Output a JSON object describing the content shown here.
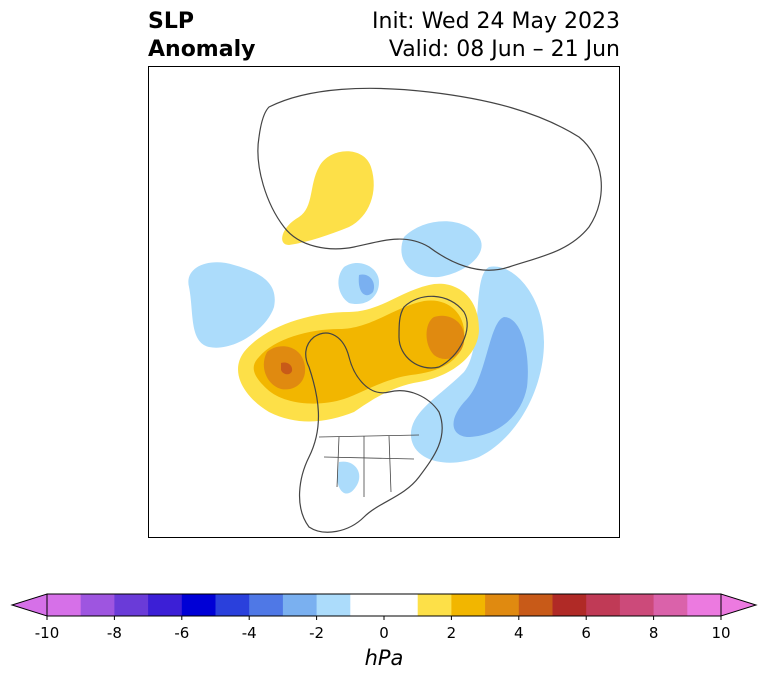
{
  "title": {
    "left_line1": "SLP",
    "left_line2": "Anomaly",
    "right_line1": "Init: Wed 24 May 2023",
    "right_line2": "Valid: 08 Jun – 21 Jun"
  },
  "map": {
    "projection": "polar-stereographic",
    "region": "North America / Northern Hemisphere",
    "anomaly_features": [
      {
        "label": "positive",
        "level": 1
      },
      {
        "label": "positive",
        "level": 3
      },
      {
        "label": "negative",
        "level": -2
      }
    ]
  },
  "colorbar": {
    "unit_label": "hPa",
    "ticks": [
      "-10",
      "-8",
      "-6",
      "-4",
      "-2",
      "0",
      "2",
      "4",
      "6",
      "8",
      "10"
    ],
    "colors": [
      "#d670e8",
      "#9e55e0",
      "#6a3bd8",
      "#3c1fd6",
      "#0000d6",
      "#2a40dc",
      "#4f78e6",
      "#7ab0f0",
      "#acdcfb",
      "#ffffff",
      "#ffffff",
      "#fde048",
      "#f2b600",
      "#e08a10",
      "#c85a18",
      "#b02a26",
      "#c03a56",
      "#cc4a7a",
      "#da62aa",
      "#ec7ae0"
    ],
    "extend_min_color": "#d670e8",
    "extend_max_color": "#ec7ae0"
  }
}
